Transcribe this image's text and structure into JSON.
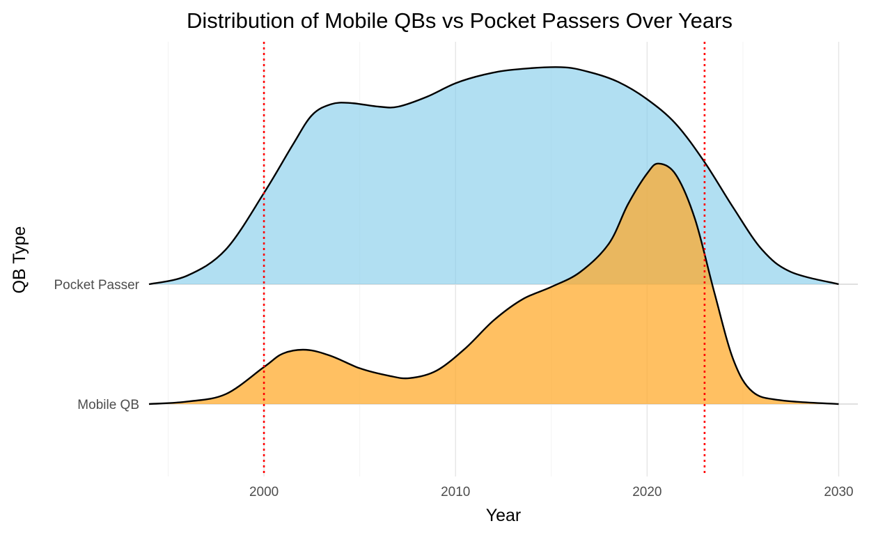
{
  "chart_data": {
    "type": "ridgeline",
    "title": "Distribution of Mobile QBs vs Pocket Passers Over Years",
    "xlabel": "Year",
    "ylabel": "QB Type",
    "xlim": [
      1994,
      2031
    ],
    "x_ticks": [
      2000,
      2010,
      2020,
      2030
    ],
    "x_minor_ticks": [
      1995,
      2005,
      2015,
      2025
    ],
    "grid": true,
    "reference_lines": [
      {
        "x": 2000,
        "color": "#ff0000",
        "style": "dotted"
      },
      {
        "x": 2023,
        "color": "#ff0000",
        "style": "dotted"
      }
    ],
    "series": [
      {
        "name": "Mobile QB",
        "color": "#ffa726",
        "opacity": 0.72,
        "points": [
          [
            1994,
            0.0
          ],
          [
            1996,
            0.02
          ],
          [
            1998,
            0.08
          ],
          [
            2000,
            0.3
          ],
          [
            2001,
            0.41
          ],
          [
            2002.2,
            0.44
          ],
          [
            2003.5,
            0.39
          ],
          [
            2005,
            0.29
          ],
          [
            2006.5,
            0.23
          ],
          [
            2007.6,
            0.21
          ],
          [
            2009,
            0.27
          ],
          [
            2010.5,
            0.45
          ],
          [
            2012,
            0.68
          ],
          [
            2013.5,
            0.85
          ],
          [
            2015,
            0.95
          ],
          [
            2016.5,
            1.07
          ],
          [
            2018,
            1.3
          ],
          [
            2019,
            1.62
          ],
          [
            2020,
            1.87
          ],
          [
            2020.6,
            1.95
          ],
          [
            2021.5,
            1.86
          ],
          [
            2022.5,
            1.5
          ],
          [
            2023.5,
            0.91
          ],
          [
            2024.5,
            0.36
          ],
          [
            2025.5,
            0.1
          ],
          [
            2027,
            0.03
          ],
          [
            2030,
            0.0
          ]
        ]
      },
      {
        "name": "Pocket Passer",
        "color": "#87ceeb",
        "opacity": 0.65,
        "points": [
          [
            1994,
            0.0
          ],
          [
            1996,
            0.07
          ],
          [
            1998,
            0.28
          ],
          [
            2000,
            0.74
          ],
          [
            2001.5,
            1.13
          ],
          [
            2002.5,
            1.37
          ],
          [
            2003.5,
            1.46
          ],
          [
            2004.5,
            1.47
          ],
          [
            2006,
            1.44
          ],
          [
            2007,
            1.44
          ],
          [
            2008.5,
            1.52
          ],
          [
            2010,
            1.63
          ],
          [
            2011.5,
            1.7
          ],
          [
            2013,
            1.74
          ],
          [
            2015.5,
            1.76
          ],
          [
            2017,
            1.72
          ],
          [
            2018.5,
            1.64
          ],
          [
            2020,
            1.5
          ],
          [
            2021.5,
            1.3
          ],
          [
            2023,
            0.99
          ],
          [
            2024.5,
            0.62
          ],
          [
            2026,
            0.28
          ],
          [
            2027.5,
            0.1
          ],
          [
            2030,
            0.0
          ]
        ]
      }
    ]
  }
}
